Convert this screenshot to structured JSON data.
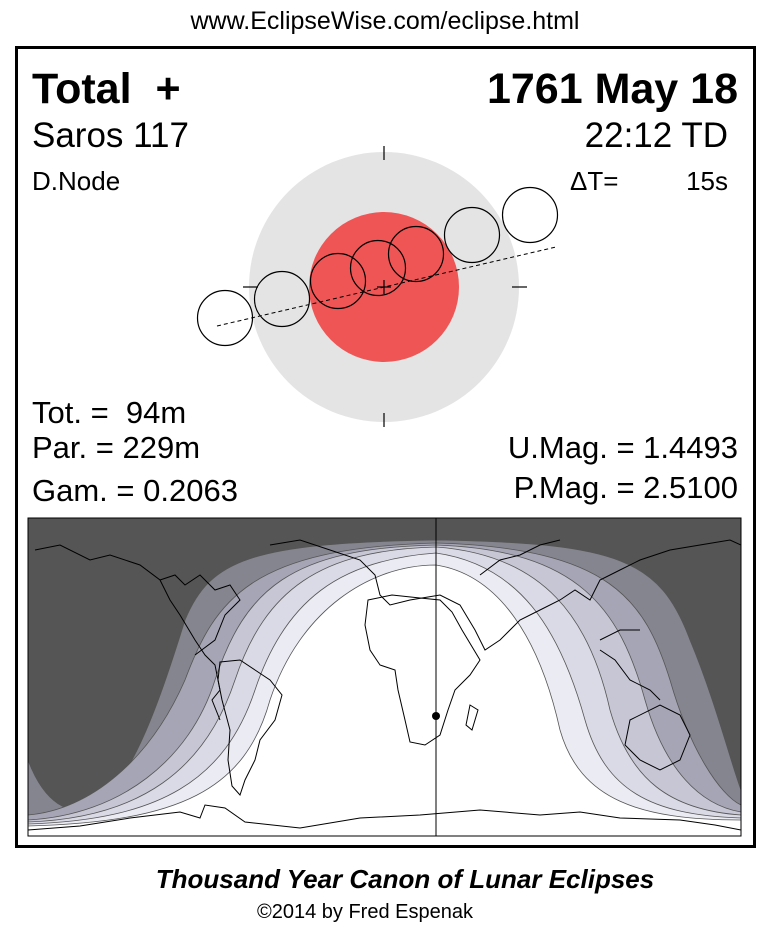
{
  "header": {
    "url": "www.EclipseWise.com/eclipse.html"
  },
  "eclipse": {
    "type": "Total",
    "type_symbol": "+",
    "date": "1761 May 18",
    "saros": "Saros 117",
    "time": "22:12 TD",
    "node": "D.Node",
    "delta_t_label": "ΔT=",
    "delta_t_value": "15s",
    "totality": "Tot. =  94m",
    "partial": "Par. = 229m",
    "gamma": "Gam. = 0.2063",
    "umbral_mag": "U.Mag. = 1.4493",
    "penumbral_mag": "P.Mag. = 2.5100"
  },
  "colors": {
    "umbra": "#EF5555",
    "penumbra": "#E4E4E4",
    "night": "#555555"
  },
  "footer": {
    "title": "Thousand Year Canon of Lunar Eclipses",
    "copyright": "©2014 by Fred Espenak"
  }
}
